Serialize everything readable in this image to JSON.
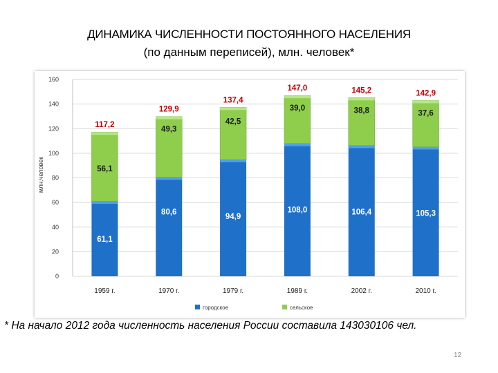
{
  "title": "ДИНАМИКА ЧИСЛЕННОСТИ ПОСТОЯННОГО НАСЕЛЕНИЯ",
  "subtitle": "(по данным переписей), млн. человек*",
  "footnote": "* На начало 2012 года численность населения России составила 143030106 чел.",
  "page_number": "12",
  "colors": {
    "urban": "#1f70c8",
    "rural": "#8fce4c",
    "total_label": "#c00000",
    "grid": "#d9d9d9"
  },
  "chart_data": {
    "type": "bar",
    "stacked": true,
    "categories": [
      "1959 г.",
      "1970 г.",
      "1979 г.",
      "1989 г.",
      "2002 г.",
      "2010 г."
    ],
    "series": [
      {
        "name": "городское",
        "values": [
          61.1,
          80.6,
          94.9,
          108.0,
          106.4,
          105.3
        ],
        "labels": [
          "61,1",
          "80,6",
          "94,9",
          "108,0",
          "106,4",
          "105,3"
        ]
      },
      {
        "name": "сельское",
        "values": [
          56.1,
          49.3,
          42.5,
          39.0,
          38.8,
          37.6
        ],
        "labels": [
          "56,1",
          "49,3",
          "42,5",
          "39,0",
          "38,8",
          "37,6"
        ]
      }
    ],
    "totals": [
      117.2,
      129.9,
      137.4,
      147.0,
      145.2,
      142.9
    ],
    "total_labels": [
      "117,2",
      "129,9",
      "137,4",
      "147,0",
      "145,2",
      "142,9"
    ],
    "ylabel": "млн.человек",
    "ylim": [
      0,
      160
    ],
    "yticks": [
      0,
      20,
      40,
      60,
      80,
      100,
      120,
      140,
      160
    ],
    "grid": true,
    "legend_position": "bottom"
  }
}
